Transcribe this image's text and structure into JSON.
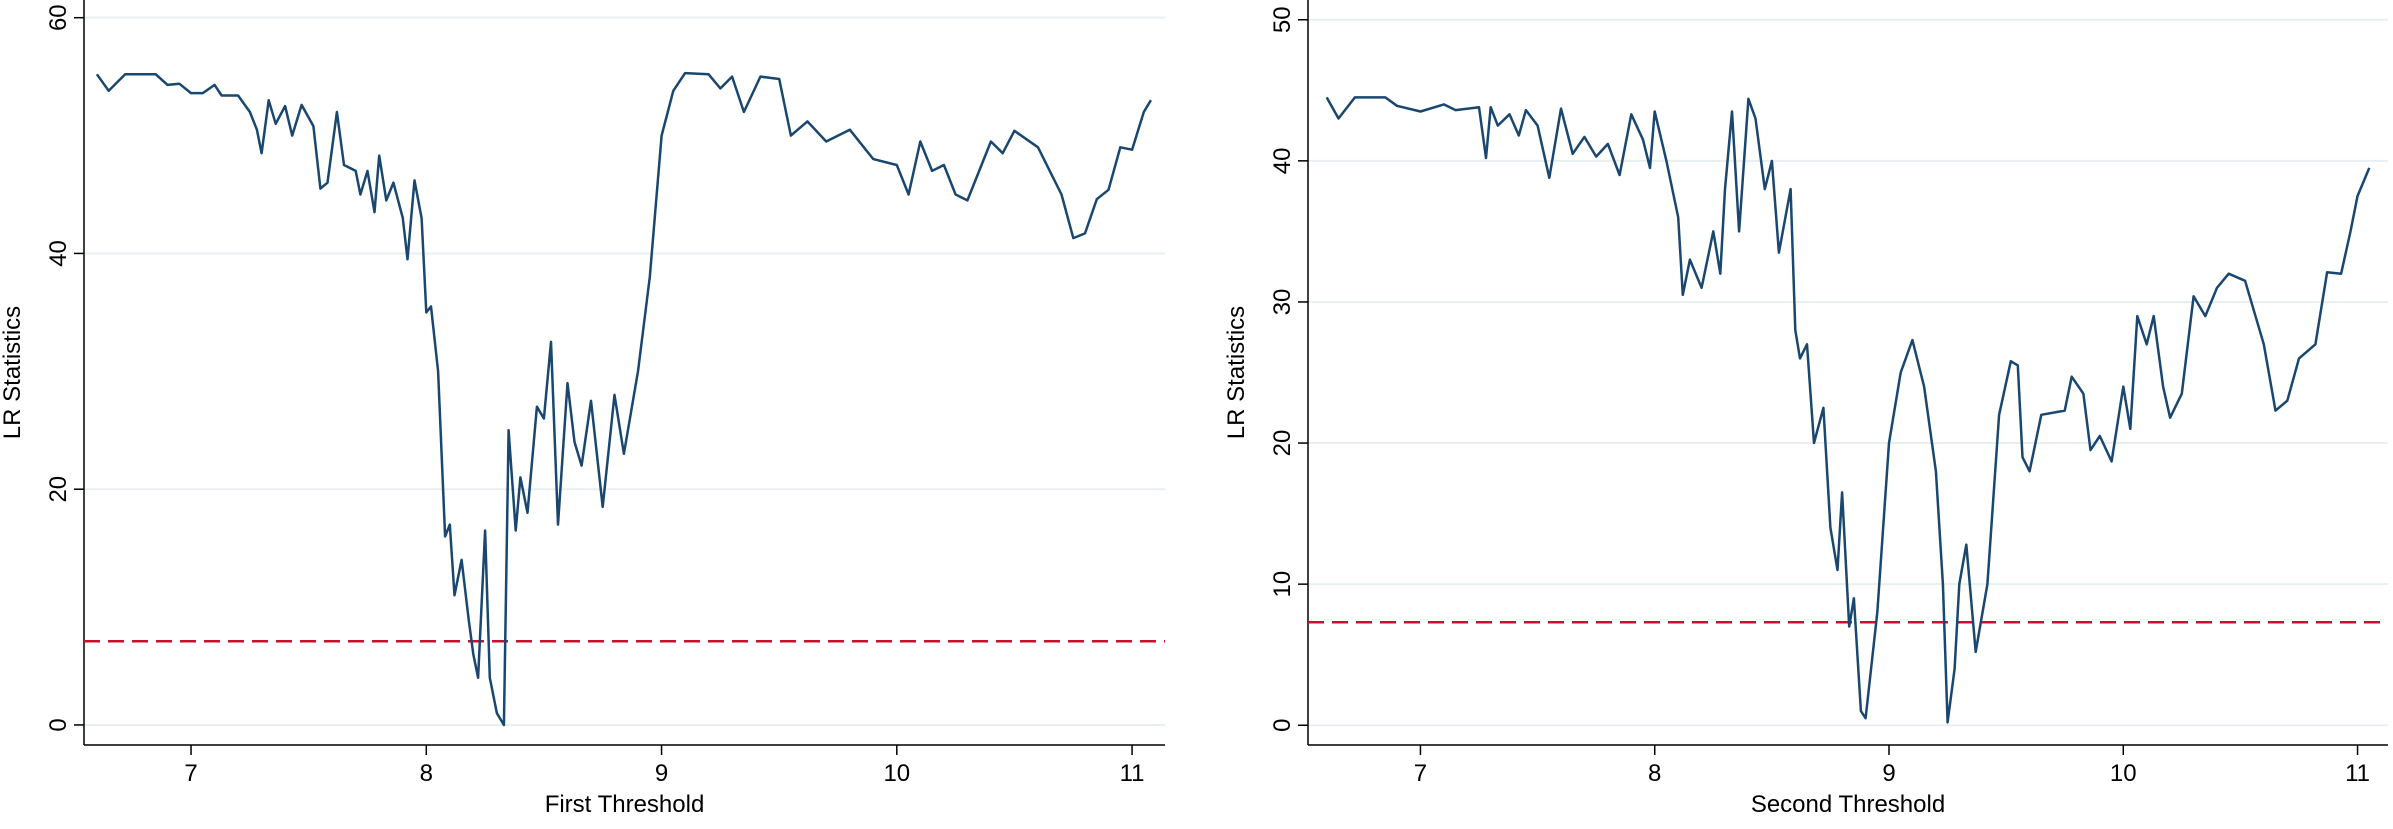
{
  "chart_data": [
    {
      "type": "line",
      "x_label": "First Threshold",
      "y_label": "LR Statistics",
      "xlim": [
        6.545,
        11.14
      ],
      "ylim": [
        -1.7,
        61.5
      ],
      "xticks": [
        7,
        8,
        9,
        10,
        11
      ],
      "yticks": [
        0,
        20,
        40,
        60
      ],
      "grid": true,
      "color": "#1a476f",
      "hline": 7.1,
      "hline_color": "#c8102e",
      "x": [
        6.6,
        6.65,
        6.72,
        6.85,
        6.9,
        6.95,
        7.0,
        7.05,
        7.1,
        7.13,
        7.2,
        7.25,
        7.28,
        7.3,
        7.33,
        7.36,
        7.4,
        7.43,
        7.47,
        7.52,
        7.55,
        7.58,
        7.62,
        7.65,
        7.7,
        7.72,
        7.75,
        7.78,
        7.8,
        7.83,
        7.86,
        7.9,
        7.92,
        7.95,
        7.98,
        8.0,
        8.02,
        8.05,
        8.08,
        8.1,
        8.12,
        8.15,
        8.18,
        8.2,
        8.22,
        8.25,
        8.27,
        8.3,
        8.33,
        8.35,
        8.38,
        8.4,
        8.43,
        8.47,
        8.5,
        8.53,
        8.56,
        8.6,
        8.63,
        8.66,
        8.7,
        8.75,
        8.8,
        8.84,
        8.9,
        8.95,
        9.0,
        9.05,
        9.1,
        9.2,
        9.25,
        9.3,
        9.35,
        9.42,
        9.5,
        9.55,
        9.62,
        9.7,
        9.8,
        9.9,
        10.0,
        10.05,
        10.1,
        10.15,
        10.2,
        10.25,
        10.3,
        10.4,
        10.45,
        10.5,
        10.6,
        10.7,
        10.75,
        10.8,
        10.85,
        10.9,
        10.95,
        11.0,
        11.05,
        11.08
      ],
      "values": [
        55.2,
        53.8,
        55.2,
        55.2,
        54.3,
        54.4,
        53.6,
        53.6,
        54.3,
        53.4,
        53.4,
        52,
        50.5,
        48.5,
        53,
        51,
        52.5,
        50,
        52.6,
        50.8,
        45.5,
        46,
        52,
        47.5,
        47,
        45,
        47,
        43.5,
        48.3,
        44.5,
        46,
        43,
        39.5,
        46.2,
        43,
        35,
        35.5,
        30,
        16,
        17,
        11,
        14,
        9,
        6,
        4,
        16.5,
        4,
        1,
        0,
        25,
        16.5,
        21,
        18,
        27,
        26,
        32.5,
        17,
        29,
        24,
        22,
        27.5,
        18.5,
        28,
        23,
        30,
        38,
        50,
        53.8,
        55.3,
        55.2,
        54,
        55,
        52,
        55,
        54.8,
        50,
        51.2,
        49.5,
        50.5,
        48,
        47.5,
        45,
        49.5,
        47,
        47.5,
        45,
        44.5,
        49.5,
        48.5,
        50.4,
        49,
        45,
        41.3,
        41.7,
        44.6,
        45.4,
        49,
        48.8,
        52,
        53
      ]
    },
    {
      "type": "line",
      "x_label": "Second Threshold",
      "y_label": "LR Statistics",
      "xlim": [
        6.52,
        11.13
      ],
      "ylim": [
        -1.4,
        51.4
      ],
      "xticks": [
        7,
        8,
        9,
        10,
        11
      ],
      "yticks": [
        0,
        10,
        20,
        30,
        40,
        50
      ],
      "grid": true,
      "color": "#1a476f",
      "hline": 7.3,
      "hline_color": "#c8102e",
      "x": [
        6.6,
        6.65,
        6.72,
        6.85,
        6.9,
        7.0,
        7.1,
        7.15,
        7.25,
        7.28,
        7.3,
        7.33,
        7.38,
        7.42,
        7.45,
        7.5,
        7.55,
        7.6,
        7.65,
        7.7,
        7.75,
        7.8,
        7.85,
        7.9,
        7.95,
        7.98,
        8.0,
        8.05,
        8.1,
        8.12,
        8.15,
        8.2,
        8.25,
        8.28,
        8.3,
        8.33,
        8.36,
        8.4,
        8.43,
        8.47,
        8.5,
        8.53,
        8.58,
        8.6,
        8.62,
        8.65,
        8.68,
        8.72,
        8.75,
        8.78,
        8.8,
        8.83,
        8.85,
        8.88,
        8.9,
        8.95,
        9.0,
        9.05,
        9.1,
        9.15,
        9.2,
        9.23,
        9.25,
        9.28,
        9.3,
        9.33,
        9.37,
        9.42,
        9.47,
        9.52,
        9.55,
        9.57,
        9.6,
        9.65,
        9.75,
        9.78,
        9.83,
        9.86,
        9.9,
        9.95,
        10.0,
        10.03,
        10.06,
        10.1,
        10.13,
        10.17,
        10.2,
        10.25,
        10.3,
        10.35,
        10.4,
        10.45,
        10.52,
        10.6,
        10.65,
        10.7,
        10.75,
        10.82,
        10.87,
        10.93,
        10.97,
        11.0,
        11.05
      ],
      "values": [
        44.5,
        43,
        44.5,
        44.5,
        43.9,
        43.5,
        44,
        43.6,
        43.8,
        40.2,
        43.8,
        42.5,
        43.3,
        41.8,
        43.6,
        42.5,
        38.8,
        43.7,
        40.5,
        41.7,
        40.3,
        41.2,
        39,
        43.3,
        41.5,
        39.5,
        43.5,
        40,
        36,
        30.5,
        33,
        31,
        35,
        32,
        38,
        43.5,
        35,
        44.4,
        43,
        38,
        40,
        33.5,
        38,
        28,
        26,
        27,
        20,
        22.5,
        14,
        11,
        16.5,
        7,
        9,
        1,
        0.5,
        8,
        20,
        25,
        27.3,
        24,
        18,
        10,
        0.2,
        4,
        10,
        12.8,
        5.2,
        10,
        22,
        25.8,
        25.5,
        19,
        18,
        22,
        22.3,
        24.7,
        23.5,
        19.5,
        20.5,
        18.7,
        24,
        21,
        29,
        27,
        29,
        24,
        21.8,
        23.5,
        30.4,
        29,
        31,
        32,
        31.5,
        27,
        22.3,
        23,
        26,
        27,
        32.1,
        32,
        35,
        37.5,
        39.5
      ]
    }
  ]
}
